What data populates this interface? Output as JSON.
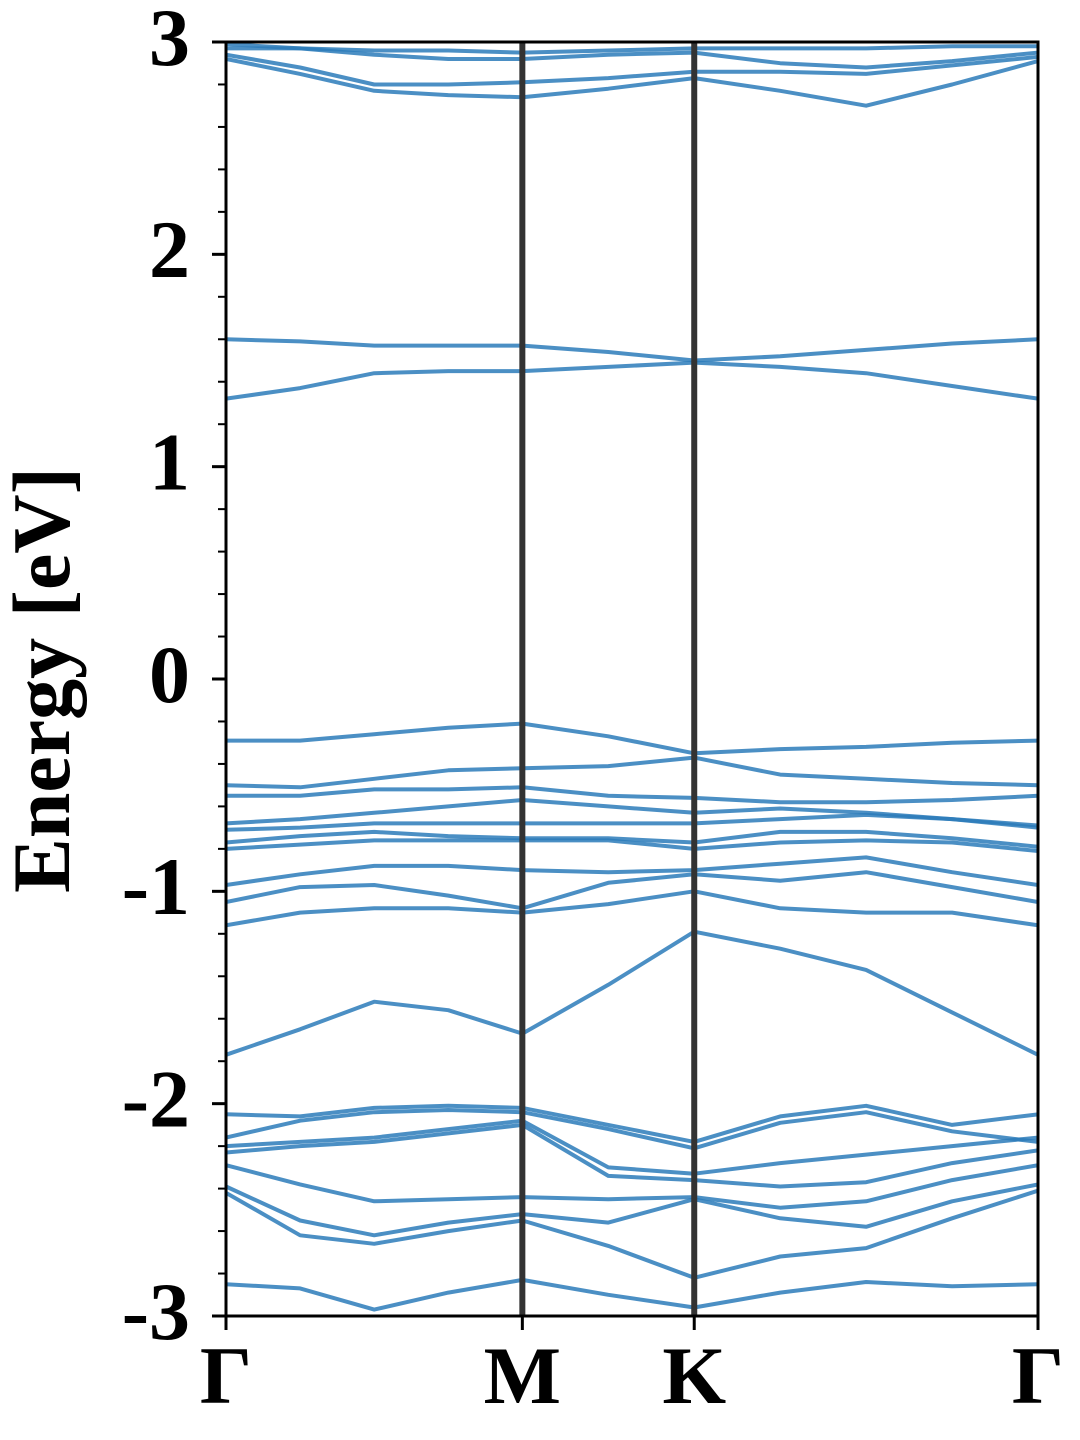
{
  "chart_data": {
    "type": "line",
    "ylabel": "Energy [eV]",
    "color": "#2b7bba",
    "x": [
      0,
      0.25,
      0.5,
      0.75,
      1.0,
      1.29,
      1.58,
      1.87,
      2.16,
      2.45,
      2.74
    ],
    "xlim": [
      0,
      2.74
    ],
    "xticks": [
      {
        "value": 0,
        "label": "Γ"
      },
      {
        "value": 1.0,
        "label": "M"
      },
      {
        "value": 1.58,
        "label": "K"
      },
      {
        "value": 2.74,
        "label": "Γ"
      }
    ],
    "ylim": [
      -3,
      3
    ],
    "yticks": [
      -3,
      -2,
      -1,
      0,
      1,
      2,
      3
    ],
    "yminorticks": [
      -2.8,
      -2.6,
      -2.4,
      -2.2,
      -1.8,
      -1.6,
      -1.4,
      -1.2,
      -0.8,
      -0.6,
      -0.4,
      -0.2,
      0.2,
      0.4,
      0.6,
      0.8,
      1.2,
      1.4,
      1.6,
      1.8,
      2.2,
      2.4,
      2.6,
      2.8
    ],
    "grid": true,
    "series": [
      {
        "values": [
          2.97,
          2.97,
          2.96,
          2.96,
          2.95,
          2.96,
          2.97,
          2.97,
          2.97,
          2.98,
          2.98
        ]
      },
      {
        "values": [
          2.99,
          2.97,
          2.94,
          2.92,
          2.92,
          2.94,
          2.95,
          2.9,
          2.88,
          2.91,
          2.95
        ]
      },
      {
        "values": [
          2.94,
          2.88,
          2.8,
          2.8,
          2.81,
          2.83,
          2.86,
          2.86,
          2.85,
          2.89,
          2.93
        ]
      },
      {
        "values": [
          2.92,
          2.85,
          2.77,
          2.75,
          2.74,
          2.78,
          2.83,
          2.77,
          2.7,
          2.8,
          2.91
        ]
      },
      {
        "values": [
          1.6,
          1.59,
          1.57,
          1.57,
          1.57,
          1.54,
          1.5,
          1.52,
          1.55,
          1.58,
          1.6
        ]
      },
      {
        "values": [
          1.32,
          1.37,
          1.44,
          1.45,
          1.45,
          1.47,
          1.49,
          1.47,
          1.44,
          1.38,
          1.32
        ]
      },
      {
        "values": [
          -0.29,
          -0.29,
          -0.26,
          -0.23,
          -0.21,
          -0.27,
          -0.35,
          -0.33,
          -0.32,
          -0.3,
          -0.29
        ]
      },
      {
        "values": [
          -0.5,
          -0.51,
          -0.47,
          -0.43,
          -0.42,
          -0.41,
          -0.37,
          -0.45,
          -0.47,
          -0.49,
          -0.5
        ]
      },
      {
        "values": [
          -0.55,
          -0.55,
          -0.52,
          -0.52,
          -0.51,
          -0.55,
          -0.56,
          -0.58,
          -0.58,
          -0.57,
          -0.55
        ]
      },
      {
        "values": [
          -0.68,
          -0.66,
          -0.63,
          -0.6,
          -0.57,
          -0.6,
          -0.63,
          -0.61,
          -0.63,
          -0.66,
          -0.69
        ]
      },
      {
        "values": [
          -0.71,
          -0.7,
          -0.68,
          -0.68,
          -0.68,
          -0.68,
          -0.68,
          -0.66,
          -0.64,
          -0.66,
          -0.7
        ]
      },
      {
        "values": [
          -0.77,
          -0.74,
          -0.72,
          -0.74,
          -0.75,
          -0.75,
          -0.77,
          -0.72,
          -0.72,
          -0.75,
          -0.79
        ]
      },
      {
        "values": [
          -0.8,
          -0.78,
          -0.76,
          -0.76,
          -0.76,
          -0.76,
          -0.8,
          -0.77,
          -0.76,
          -0.77,
          -0.81
        ]
      },
      {
        "values": [
          -0.97,
          -0.92,
          -0.88,
          -0.88,
          -0.9,
          -0.91,
          -0.9,
          -0.87,
          -0.84,
          -0.91,
          -0.97
        ]
      },
      {
        "values": [
          -1.05,
          -0.98,
          -0.97,
          -1.02,
          -1.08,
          -0.96,
          -0.92,
          -0.95,
          -0.91,
          -0.98,
          -1.05
        ]
      },
      {
        "values": [
          -1.16,
          -1.1,
          -1.08,
          -1.08,
          -1.1,
          -1.06,
          -1.0,
          -1.08,
          -1.1,
          -1.1,
          -1.16
        ]
      },
      {
        "values": [
          -1.77,
          -1.65,
          -1.52,
          -1.56,
          -1.67,
          -1.44,
          -1.19,
          -1.27,
          -1.37,
          -1.57,
          -1.77
        ]
      },
      {
        "values": [
          -2.05,
          -2.06,
          -2.02,
          -2.01,
          -2.02,
          -2.1,
          -2.18,
          -2.06,
          -2.01,
          -2.1,
          -2.05
        ]
      },
      {
        "values": [
          -2.16,
          -2.08,
          -2.04,
          -2.03,
          -2.04,
          -2.12,
          -2.21,
          -2.09,
          -2.04,
          -2.13,
          -2.18
        ]
      },
      {
        "values": [
          -2.2,
          -2.18,
          -2.16,
          -2.12,
          -2.08,
          -2.3,
          -2.33,
          -2.28,
          -2.24,
          -2.2,
          -2.16
        ]
      },
      {
        "values": [
          -2.23,
          -2.2,
          -2.18,
          -2.14,
          -2.1,
          -2.34,
          -2.36,
          -2.39,
          -2.37,
          -2.28,
          -2.22
        ]
      },
      {
        "values": [
          -2.29,
          -2.38,
          -2.46,
          -2.45,
          -2.44,
          -2.45,
          -2.44,
          -2.49,
          -2.46,
          -2.36,
          -2.29
        ]
      },
      {
        "values": [
          -2.39,
          -2.55,
          -2.62,
          -2.56,
          -2.52,
          -2.56,
          -2.45,
          -2.54,
          -2.58,
          -2.46,
          -2.38
        ]
      },
      {
        "values": [
          -2.42,
          -2.62,
          -2.66,
          -2.6,
          -2.55,
          -2.67,
          -2.82,
          -2.72,
          -2.68,
          -2.54,
          -2.41
        ]
      },
      {
        "values": [
          -2.85,
          -2.87,
          -2.97,
          -2.89,
          -2.83,
          -2.9,
          -2.96,
          -2.89,
          -2.84,
          -2.86,
          -2.85
        ]
      }
    ]
  }
}
